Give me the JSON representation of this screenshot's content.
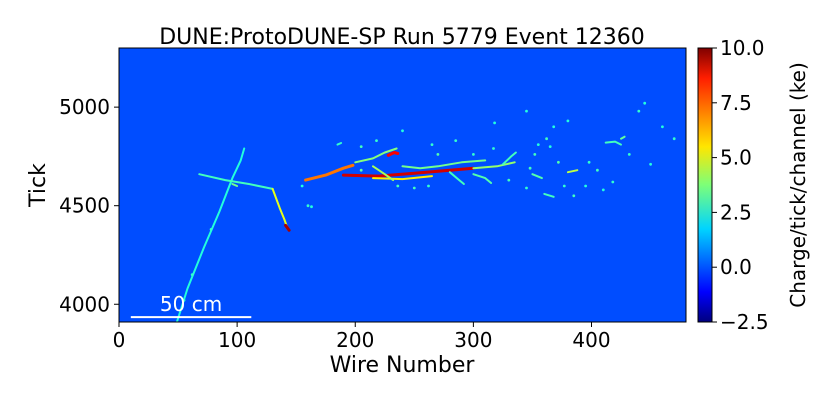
{
  "chart_data": {
    "type": "heatmap",
    "title": "DUNE:ProtoDUNE-SP Run 5779 Event 12360",
    "xlabel": "Wire Number",
    "ylabel": "Tick",
    "xlim": [
      0,
      480
    ],
    "ylim": [
      3910,
      5300
    ],
    "xticks": [
      {
        "value": 0,
        "label": "0"
      },
      {
        "value": 100,
        "label": "100"
      },
      {
        "value": 200,
        "label": "200"
      },
      {
        "value": 300,
        "label": "300"
      },
      {
        "value": 400,
        "label": "400"
      }
    ],
    "yticks": [
      {
        "value": 4000,
        "label": "4000"
      },
      {
        "value": 4500,
        "label": "4500"
      },
      {
        "value": 5000,
        "label": "5000"
      }
    ],
    "colorbar": {
      "label": "Charge/tick/channel (ke)",
      "range": [
        -2.5,
        10.0
      ],
      "colormap": "jet",
      "ticks": [
        {
          "value": 10.0,
          "label": "10.0"
        },
        {
          "value": 7.5,
          "label": "7.5"
        },
        {
          "value": 5.0,
          "label": "5.0"
        },
        {
          "value": 2.5,
          "label": "2.5"
        },
        {
          "value": 0.0,
          "label": "0.0"
        },
        {
          "value": -2.5,
          "label": "−2.5"
        }
      ]
    },
    "background_value": 0.0,
    "tracks": [
      {
        "points": [
          [
            49,
            3910
          ],
          [
            58,
            4080
          ],
          [
            72,
            4290
          ],
          [
            85,
            4470
          ],
          [
            96,
            4640
          ],
          [
            103,
            4730
          ],
          [
            106,
            4790
          ]
        ],
        "value": 2.6
      },
      {
        "points": [
          [
            68,
            4660
          ],
          [
            90,
            4630
          ],
          [
            110,
            4610
          ],
          [
            130,
            4585
          ]
        ],
        "value": 3.0
      },
      {
        "points": [
          [
            130,
            4585
          ],
          [
            136,
            4490
          ],
          [
            140,
            4430
          ],
          [
            143,
            4380
          ]
        ],
        "value": 5.0
      },
      {
        "points": [
          [
            141,
            4400
          ],
          [
            144,
            4375
          ]
        ],
        "value": 9.5
      },
      {
        "points": [
          [
            158,
            4630
          ],
          [
            175,
            4655
          ],
          [
            190,
            4690
          ],
          [
            198,
            4705
          ]
        ],
        "value": 7.0
      },
      {
        "points": [
          [
            190,
            4655
          ],
          [
            220,
            4650
          ],
          [
            250,
            4665
          ],
          [
            280,
            4680
          ],
          [
            300,
            4690
          ]
        ],
        "value": 9.0
      },
      {
        "points": [
          [
            300,
            4690
          ],
          [
            320,
            4700
          ],
          [
            335,
            4720
          ]
        ],
        "value": 4.0
      },
      {
        "points": [
          [
            215,
            4640
          ],
          [
            240,
            4635
          ],
          [
            265,
            4650
          ]
        ],
        "value": 5.5
      },
      {
        "points": [
          [
            200,
            4720
          ],
          [
            215,
            4740
          ],
          [
            225,
            4770
          ],
          [
            235,
            4790
          ]
        ],
        "value": 3.8
      },
      {
        "points": [
          [
            228,
            4755
          ],
          [
            233,
            4770
          ],
          [
            236,
            4765
          ]
        ],
        "value": 8.5
      },
      {
        "points": [
          [
            215,
            4700
          ],
          [
            225,
            4660
          ],
          [
            232,
            4630
          ]
        ],
        "value": 4.2
      },
      {
        "points": [
          [
            240,
            4700
          ],
          [
            255,
            4690
          ],
          [
            270,
            4700
          ],
          [
            290,
            4720
          ],
          [
            310,
            4730
          ]
        ],
        "value": 3.6
      },
      {
        "points": [
          [
            300,
            4660
          ],
          [
            310,
            4640
          ],
          [
            315,
            4615
          ]
        ],
        "value": 3.2
      },
      {
        "points": [
          [
            280,
            4670
          ],
          [
            288,
            4630
          ],
          [
            292,
            4610
          ]
        ],
        "value": 3.0
      },
      {
        "points": [
          [
            325,
            4710
          ],
          [
            332,
            4750
          ],
          [
            336,
            4770
          ]
        ],
        "value": 3.0
      },
      {
        "points": [
          [
            350,
            4660
          ],
          [
            358,
            4640
          ]
        ],
        "value": 3.2
      },
      {
        "points": [
          [
            380,
            4670
          ],
          [
            388,
            4680
          ]
        ],
        "value": 4.5
      },
      {
        "points": [
          [
            412,
            4820
          ],
          [
            420,
            4825
          ],
          [
            425,
            4810
          ]
        ],
        "value": 3.0
      },
      {
        "points": [
          [
            425,
            4840
          ],
          [
            428,
            4850
          ]
        ],
        "value": 3.4
      },
      {
        "points": [
          [
            360,
            4560
          ],
          [
            368,
            4545
          ]
        ],
        "value": 3.0
      },
      {
        "points": [
          [
            96,
            4610
          ],
          [
            100,
            4600
          ]
        ],
        "value": 3.6
      },
      {
        "points": [
          [
            185,
            4810
          ],
          [
            188,
            4818
          ]
        ],
        "value": 2.8
      }
    ],
    "hits": [
      [
        160,
        4500,
        2.8
      ],
      [
        163,
        4495,
        2.6
      ],
      [
        205,
        4800,
        3.0
      ],
      [
        218,
        4830,
        2.8
      ],
      [
        240,
        4880,
        2.6
      ],
      [
        265,
        4810,
        2.8
      ],
      [
        270,
        4760,
        3.2
      ],
      [
        285,
        4830,
        2.8
      ],
      [
        300,
        4760,
        2.8
      ],
      [
        317,
        4790,
        2.8
      ],
      [
        330,
        4630,
        3.0
      ],
      [
        345,
        4590,
        2.8
      ],
      [
        352,
        4760,
        3.0
      ],
      [
        355,
        4810,
        2.6
      ],
      [
        362,
        4840,
        3.0
      ],
      [
        368,
        4900,
        2.6
      ],
      [
        372,
        4720,
        3.2
      ],
      [
        377,
        4600,
        2.8
      ],
      [
        385,
        4550,
        3.0
      ],
      [
        395,
        4600,
        2.6
      ],
      [
        398,
        4720,
        2.8
      ],
      [
        405,
        4680,
        3.0
      ],
      [
        410,
        4580,
        2.6
      ],
      [
        418,
        4620,
        2.8
      ],
      [
        432,
        4760,
        2.8
      ],
      [
        440,
        4980,
        2.8
      ],
      [
        445,
        5020,
        2.6
      ],
      [
        450,
        4710,
        2.6
      ],
      [
        460,
        4900,
        2.6
      ],
      [
        470,
        4840,
        2.8
      ],
      [
        250,
        4590,
        3.0
      ],
      [
        262,
        4600,
        2.8
      ],
      [
        236,
        4600,
        3.0
      ],
      [
        205,
        4680,
        3.4
      ],
      [
        348,
        4690,
        3.0
      ],
      [
        365,
        4800,
        2.6
      ],
      [
        380,
        4930,
        2.6
      ],
      [
        345,
        4980,
        2.6
      ],
      [
        318,
        4920,
        2.6
      ],
      [
        155,
        4600,
        2.6
      ],
      [
        55,
        4020,
        2.8
      ],
      [
        62,
        4150,
        2.8
      ],
      [
        78,
        4380,
        2.8
      ]
    ],
    "scale_bar": {
      "label": "50 cm",
      "x_start": 10,
      "x_end": 112,
      "y": 3935
    }
  }
}
